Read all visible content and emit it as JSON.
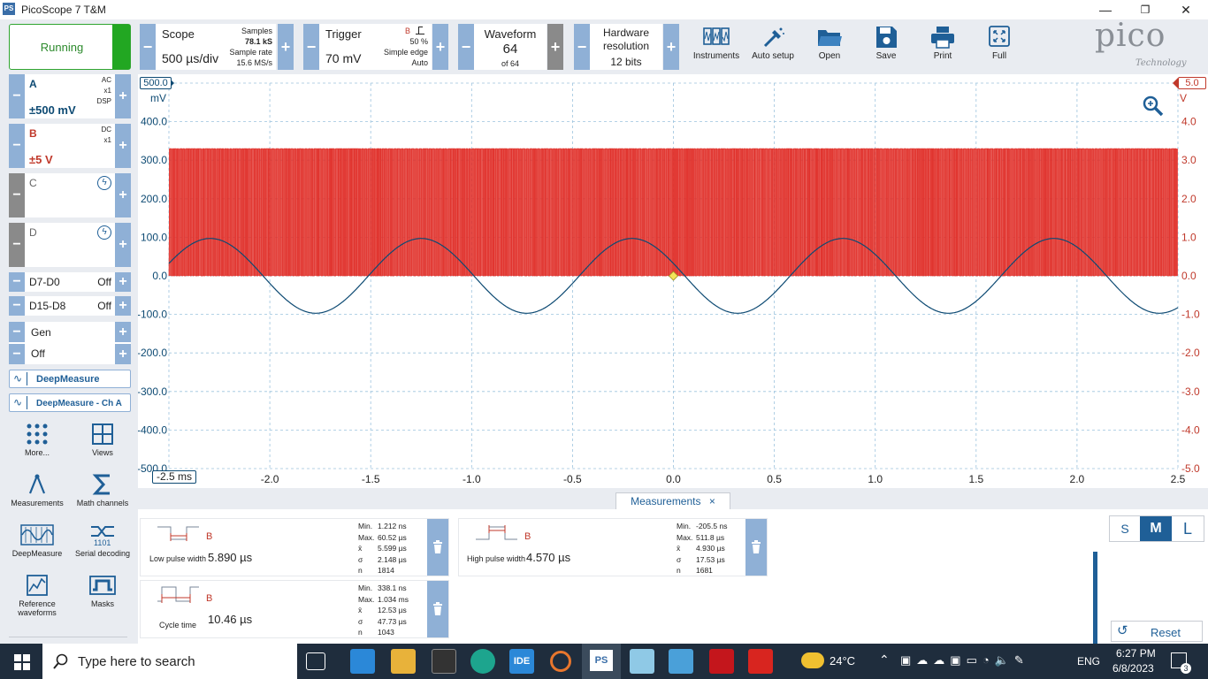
{
  "window": {
    "title": "PicoScope 7 T&M",
    "logo": "PS",
    "min": "—",
    "max": "❐",
    "close": "✕"
  },
  "run": {
    "label": "Running"
  },
  "scope": {
    "title": "Scope",
    "value": "500 µs/div",
    "samples_label": "Samples",
    "samples": "78.1 kS",
    "rate_label": "Sample rate",
    "rate": "15.6 MS/s"
  },
  "trigger": {
    "title": "Trigger",
    "value": "70 mV",
    "ch": "B",
    "pct": "50 %",
    "type": "Simple edge",
    "mode": "Auto"
  },
  "waveform": {
    "title": "Waveform",
    "value": "64",
    "of": "of 64"
  },
  "hwres": {
    "title1": "Hardware",
    "title2": "resolution",
    "value": "12 bits"
  },
  "tools": [
    {
      "label": "Instruments",
      "icon": "instruments-icon"
    },
    {
      "label": "Auto setup",
      "icon": "auto-setup-icon"
    },
    {
      "label": "Open",
      "icon": "folder-icon"
    },
    {
      "label": "Save",
      "icon": "save-icon"
    },
    {
      "label": "Print",
      "icon": "print-icon"
    },
    {
      "label": "Full",
      "icon": "fullscreen-icon"
    }
  ],
  "brand": {
    "name": "pico",
    "sub": "Technology"
  },
  "channels": {
    "a": {
      "name": "A",
      "coupling": "AC",
      "probe": "x1",
      "dsp": "DSP",
      "range": "±500 mV"
    },
    "b": {
      "name": "B",
      "coupling": "DC",
      "probe": "x1",
      "range": "±5 V"
    },
    "c": {
      "name": "C"
    },
    "d": {
      "name": "D"
    }
  },
  "digital": [
    {
      "name": "D7-D0",
      "state": "Off"
    },
    {
      "name": "D15-D8",
      "state": "Off"
    }
  ],
  "gen": {
    "name": "Gen",
    "state": "Off"
  },
  "deep": [
    {
      "label": "DeepMeasure"
    },
    {
      "label": "DeepMeasure - Ch A"
    }
  ],
  "library": [
    {
      "label": "More...",
      "icon": "more-icon"
    },
    {
      "label": "Views",
      "icon": "views-icon"
    },
    {
      "label": "Measurements",
      "icon": "measurements-icon"
    },
    {
      "label": "Math channels",
      "icon": "math-icon"
    },
    {
      "label": "DeepMeasure",
      "icon": "deepmeasure-icon"
    },
    {
      "label": "Serial decoding",
      "icon": "serial-icon"
    },
    {
      "label": "Reference waveforms",
      "icon": "reference-icon"
    },
    {
      "label": "Masks",
      "icon": "masks-icon"
    }
  ],
  "graph": {
    "left_unit": "mV",
    "right_unit": "V",
    "left_top_marker": "500.0",
    "right_top_marker": "5.0",
    "left_ticks": [
      "400.0",
      "300.0",
      "200.0",
      "100.0",
      "0.0",
      "-100.0",
      "-200.0",
      "-300.0",
      "-400.0",
      "-500.0"
    ],
    "right_ticks": [
      "4.0",
      "3.0",
      "2.0",
      "1.0",
      "0.0",
      "-1.0",
      "-2.0",
      "-3.0",
      "-4.0",
      "-5.0"
    ],
    "x_ticks": [
      "-2.0",
      "-1.5",
      "-1.0",
      "-0.5",
      "0.0",
      "0.5",
      "1.0",
      "1.5",
      "2.0",
      "2.5"
    ],
    "x_first": "-2.5 ms",
    "color_a": "#0d4a73",
    "color_b": "#e0302a",
    "grid_color": "#9cc3de"
  },
  "chart_data": {
    "type": "line",
    "x_unit": "ms",
    "xlim": [
      -2.5,
      2.5
    ],
    "series": [
      {
        "name": "A",
        "ylim": [
          -500,
          500
        ],
        "y_unit": "mV",
        "shape": "sine",
        "amplitude": 97,
        "period_ms": 1.045,
        "peak_ms": -1.25
      },
      {
        "name": "B",
        "ylim": [
          -5,
          5
        ],
        "y_unit": "V",
        "shape": "pulse",
        "low": 0.0,
        "high": 3.3
      }
    ],
    "trigger_point": {
      "x": 0.0,
      "y": 0
    }
  },
  "measurements": {
    "tab": "Measurements",
    "close": "×",
    "items": [
      {
        "name": "Low pulse width",
        "ch": "B",
        "value": "5.890 µs",
        "min": "1.212 ns",
        "max": "60.52 µs",
        "mean": "5.599 µs",
        "sd": "2.148 µs",
        "n": "1814"
      },
      {
        "name": "High pulse width",
        "ch": "B",
        "value": "4.570 µs",
        "min": "-205.5 ns",
        "max": "511.8 µs",
        "mean": "4.930 µs",
        "sd": "17.53 µs",
        "n": "1681"
      },
      {
        "name": "Cycle time",
        "ch": "B",
        "value": "10.46 µs",
        "min": "338.1 ns",
        "max": "1.034 ms",
        "mean": "12.53 µs",
        "sd": "47.73 µs",
        "n": "1043"
      }
    ],
    "labels": {
      "min": "Min.",
      "max": "Max.",
      "mean": "x̄",
      "sd": "σ",
      "n": "n"
    },
    "size": [
      "S",
      "M",
      "L"
    ],
    "reset": "Reset"
  },
  "taskbar": {
    "search": "Type here to search",
    "ide": "IDE",
    "ps": "PS",
    "temp": "24°C",
    "lang": "ENG",
    "time": "6:27 PM",
    "date": "6/8/2023",
    "notif": "3"
  }
}
